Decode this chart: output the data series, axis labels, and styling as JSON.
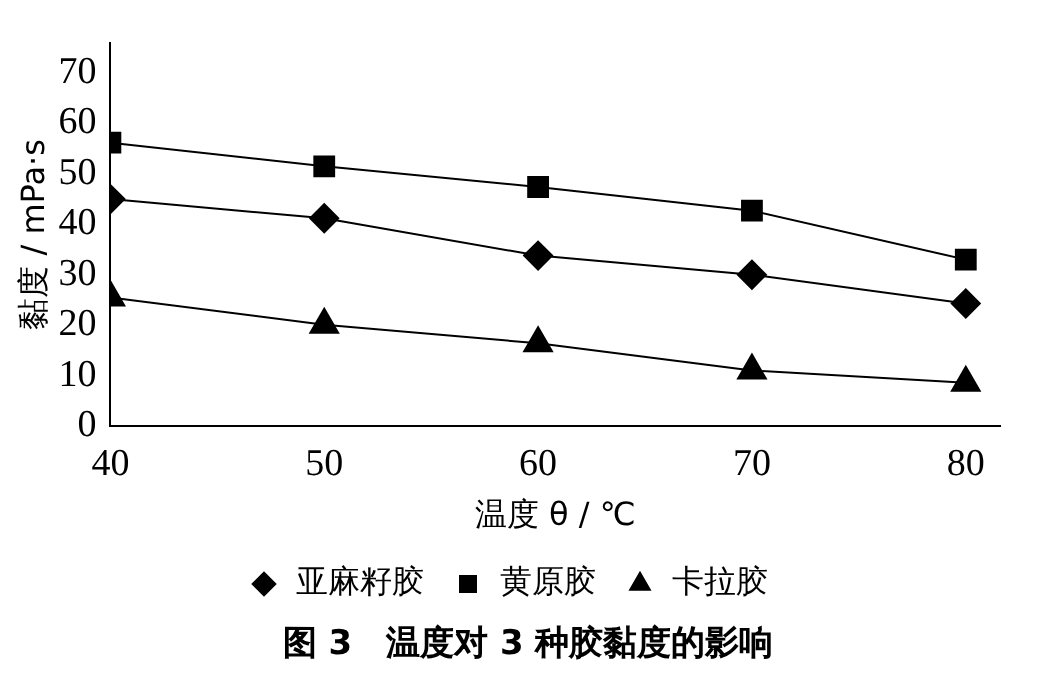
{
  "chart_data": {
    "type": "line",
    "title": "图 3　温度对 3 种胶黏度的影响",
    "xlabel": "温度 θ / ℃",
    "ylabel": "黏度 / mPa·s",
    "x": [
      40,
      50,
      60,
      70,
      80
    ],
    "series": [
      {
        "name": "亚麻籽胶",
        "color": "#000000",
        "marker": "diamond",
        "values": [
          45,
          41.2,
          33.8,
          30,
          24.3
        ]
      },
      {
        "name": "黄原胶",
        "color": "#000000",
        "marker": "square",
        "values": [
          56.2,
          51.5,
          47.4,
          42.7,
          33
        ]
      },
      {
        "name": "卡拉胶",
        "color": "#000000",
        "marker": "triangle",
        "values": [
          25.5,
          20.1,
          16.4,
          11,
          8.6
        ]
      }
    ],
    "xlim": [
      40,
      81.6
    ],
    "xticks": [
      40,
      50,
      60,
      70,
      80
    ],
    "ylim": [
      0,
      76
    ],
    "yticks": [
      0,
      10,
      20,
      30,
      40,
      50,
      60,
      70
    ],
    "grid": false,
    "legend": "bottom",
    "line_style": "solid"
  }
}
